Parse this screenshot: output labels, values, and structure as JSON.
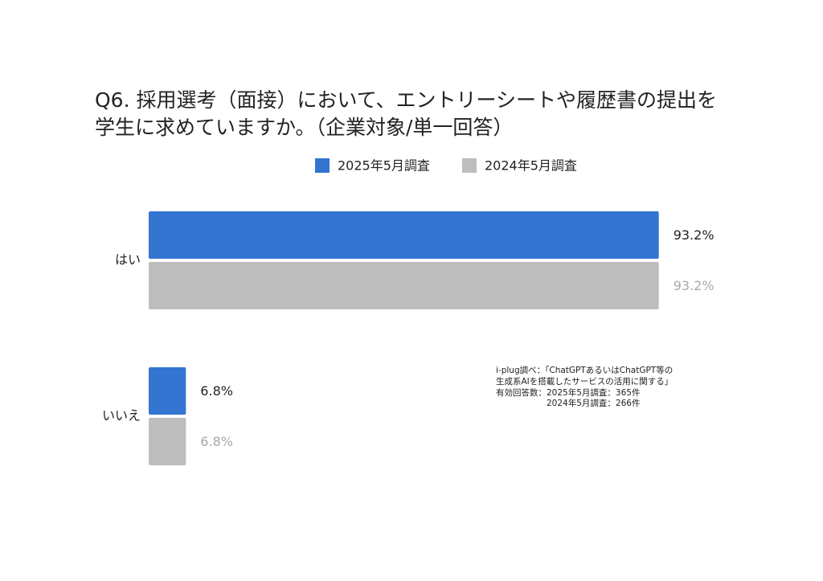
{
  "chart_data": {
    "type": "bar",
    "orientation": "horizontal",
    "title": [
      "Q6. 採用選考（面接）において、エントリーシートや履歴書の提出を",
      "学生に求めていますか。（企業対象/単一回答）"
    ],
    "categories": [
      "はい",
      "いいえ"
    ],
    "series": [
      {
        "name": "2025年5月調査",
        "color": "#3375d1",
        "values": [
          93.2,
          6.8
        ],
        "value_labels": [
          "93.2%",
          "6.8%"
        ]
      },
      {
        "name": "2024年5月調査",
        "color": "#bdbdbd",
        "values": [
          93.2,
          6.8
        ],
        "value_labels": [
          "93.2%",
          "6.8%"
        ]
      }
    ],
    "xlim": [
      0,
      100
    ],
    "note": [
      "i-plug調べ：「ChatGPTあるいはChatGPT等の",
      "生成系AIを搭載したサービスの活用に関する」",
      "有効回答数：2025年5月調査：365件",
      "2024年5月調査：266件"
    ]
  }
}
